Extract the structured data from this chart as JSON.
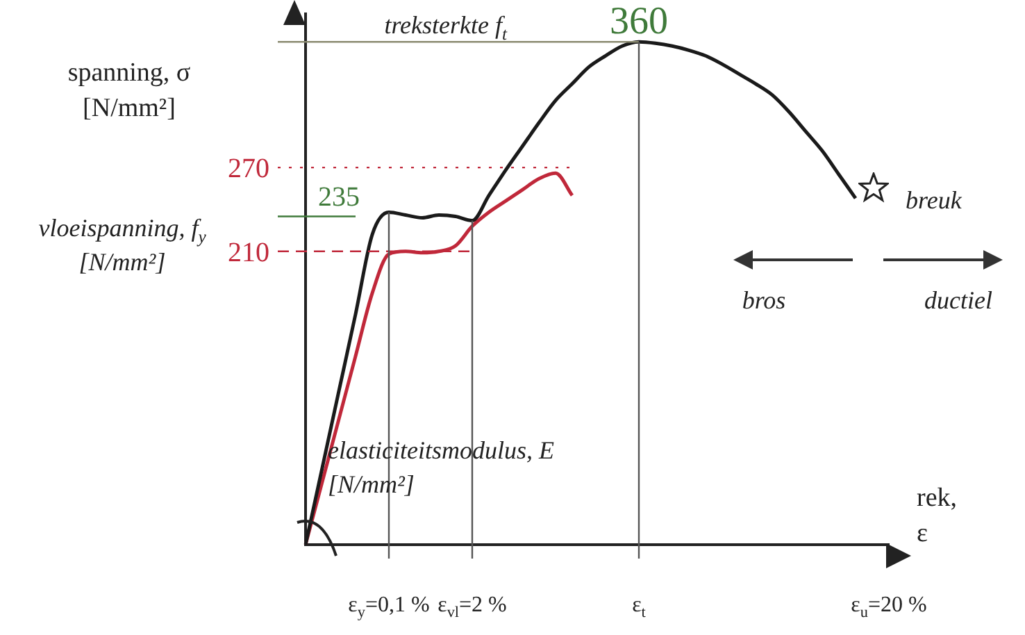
{
  "chart_data": {
    "type": "line",
    "ylabel": "spanning, σ [N/mm²]",
    "xlabel": "rek, ε",
    "categories": [
      null,
      null,
      null,
      null,
      null,
      "ε$_{y}$=0,1 %",
      null,
      null,
      null,
      null,
      "ε$_{vl}$=2 %",
      null,
      null,
      null,
      null,
      null,
      null,
      null,
      null,
      null,
      "ε$_{t}$",
      null,
      null,
      null,
      null,
      null,
      null,
      null,
      null,
      null,
      null,
      null,
      null,
      null,
      null,
      "ε$_{u}$=20 %"
    ],
    "series": [
      {
        "color": "#1a1a1a",
        "values": [
          0,
          55,
          110,
          165,
          222,
          238,
          236,
          234,
          236,
          235,
          232,
          250,
          268,
          285,
          302,
          318,
          330,
          342,
          350,
          357,
          360,
          359,
          357,
          354,
          350,
          344,
          337,
          330,
          322,
          310,
          296,
          282,
          265,
          248,
          null,
          null
        ]
      },
      {
        "color": "#c0283a",
        "values": [
          0,
          45,
          90,
          135,
          180,
          208,
          210,
          209,
          210,
          214,
          228,
          238,
          246,
          254,
          262,
          266,
          250,
          null,
          null,
          null,
          null,
          null,
          null,
          null,
          null,
          null,
          null,
          null,
          null,
          null,
          null,
          null,
          null,
          null,
          null,
          null
        ]
      }
    ],
    "ylim": [
      0,
      380
    ],
    "yticks": [
      210,
      270
    ],
    "ref_lines": [
      {
        "axis": "y",
        "value": 360,
        "label": "treksterkte f$_{t}$",
        "color": "#8a8a70",
        "line_style": "solid"
      },
      {
        "axis": "y",
        "value": 270,
        "color": "#c0283a",
        "line_style": "dotted"
      },
      {
        "axis": "y",
        "value": 235,
        "color": "#3f7a3a",
        "line_style": "solid"
      },
      {
        "axis": "y",
        "value": 210,
        "color": "#c0283a",
        "line_style": "dashed"
      },
      {
        "axis": "x",
        "value": "ε$_{y}$=0,1 %",
        "color": "#555555",
        "line_style": "solid"
      },
      {
        "axis": "x",
        "value": "ε$_{vl}$=2 %",
        "color": "#555555",
        "line_style": "solid"
      },
      {
        "axis": "x",
        "value": "ε$_{t}$",
        "color": "#555555",
        "line_style": "solid"
      }
    ],
    "annotations": [
      "vloeispanning, f$_{y}$ [N/mm²]",
      "elasticiteitsmodulus, E [N/mm²]",
      "breuk",
      "bros",
      "ductiel",
      {
        "text": "360",
        "x": "ε$_{t}$",
        "y": 360
      },
      {
        "text": "235",
        "y": 235
      }
    ]
  }
}
